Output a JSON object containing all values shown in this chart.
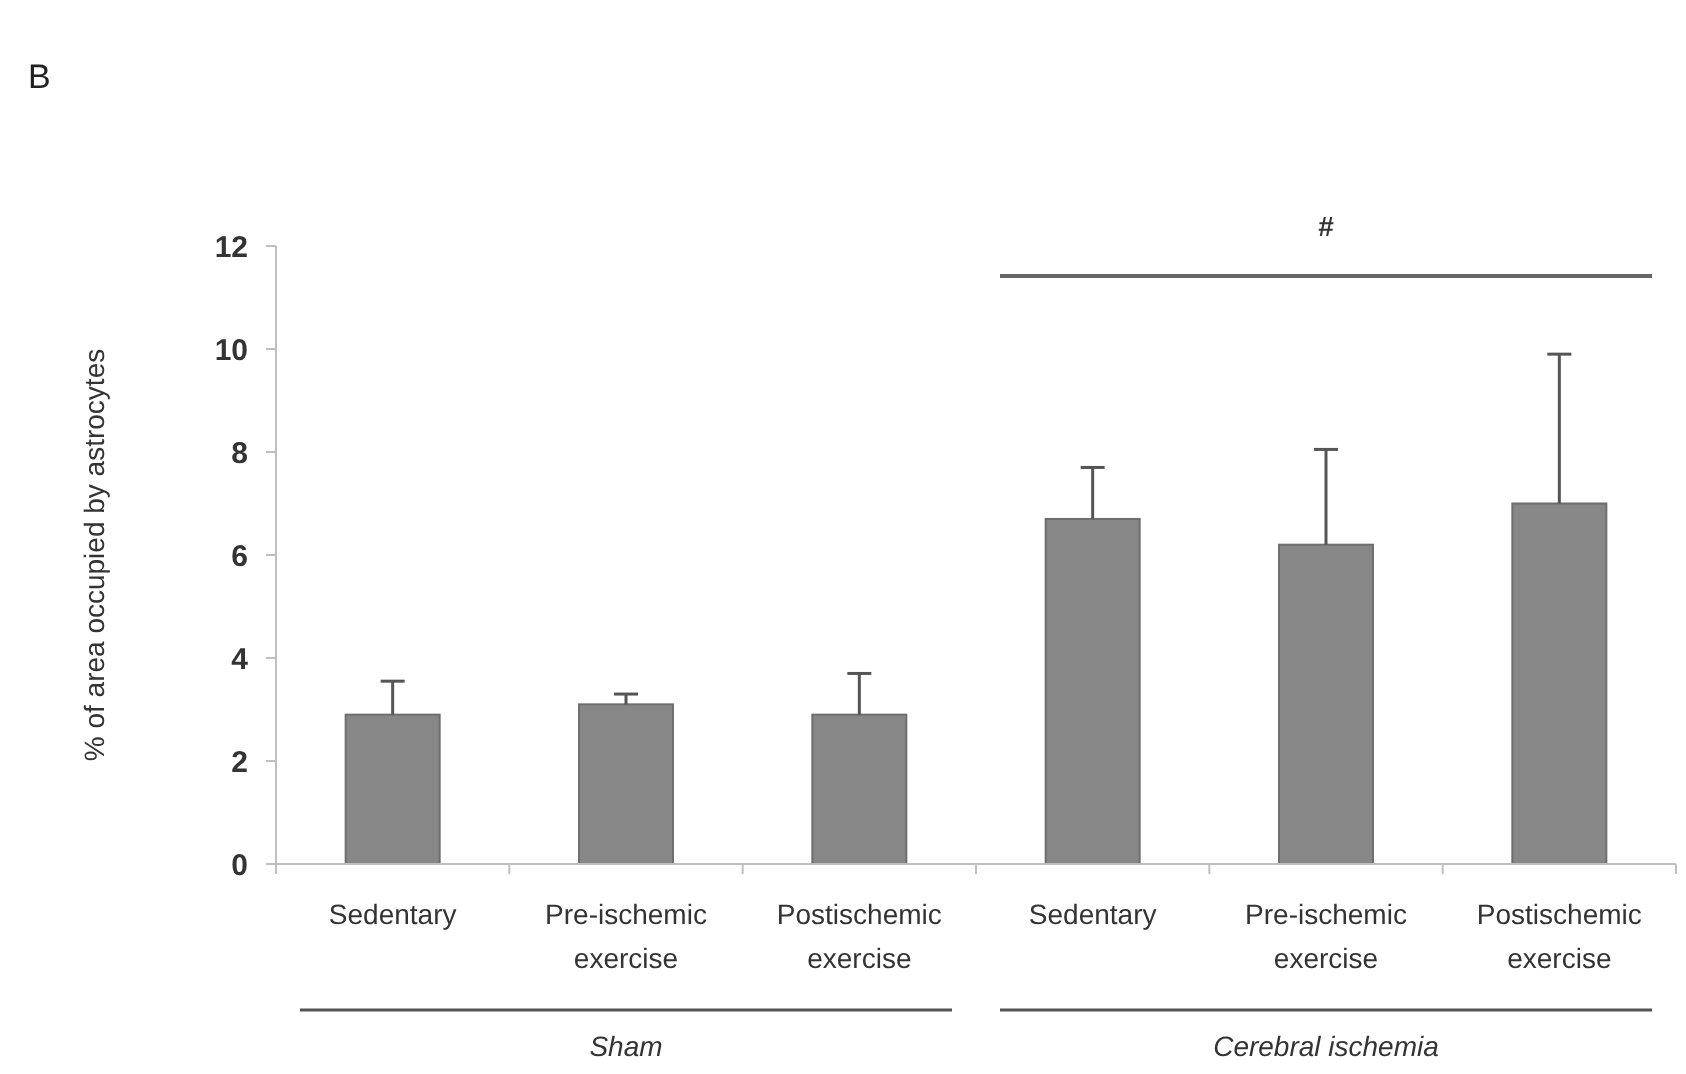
{
  "chart_data": {
    "type": "bar",
    "ylabel": "% of area occupied by astrocytes",
    "categories": [
      "Sedentary",
      "Pre-ischemic exercise",
      "Postischemic exercise",
      "Sedentary",
      "Pre-ischemic exercise",
      "Postischemic exercise"
    ],
    "values": [
      2.9,
      3.1,
      2.9,
      6.7,
      6.2,
      7.0
    ],
    "errors": [
      [
        2.9,
        3.55
      ],
      [
        3.1,
        3.3
      ],
      [
        2.9,
        3.7
      ],
      [
        6.7,
        7.7
      ],
      [
        6.2,
        8.05
      ],
      [
        7.0,
        9.9
      ]
    ],
    "color": "#878787",
    "ylim": [
      0,
      12
    ],
    "yticks": [
      0,
      2,
      4,
      6,
      8,
      10,
      12
    ],
    "annotations": [
      "B",
      "#",
      "Sham",
      "Cerebral ischemia"
    ]
  }
}
